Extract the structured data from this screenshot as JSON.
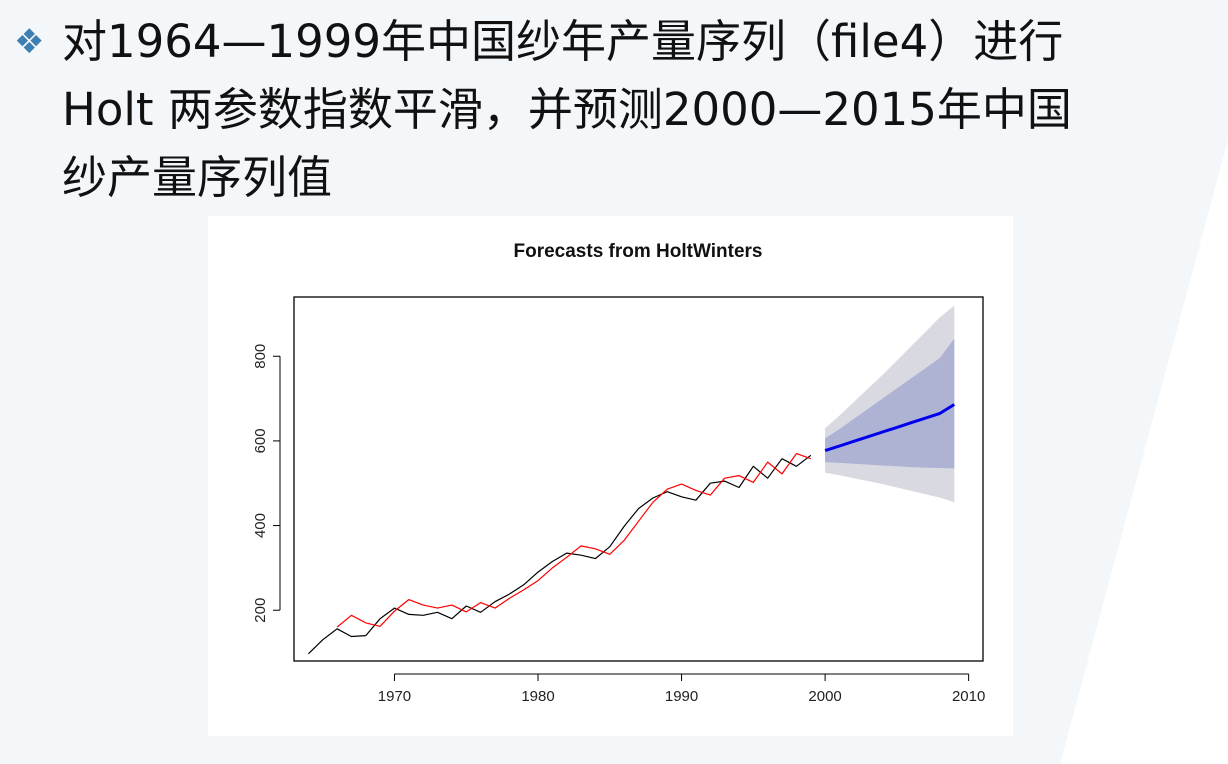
{
  "slide": {
    "bullet_icon": "diamond-cluster-icon",
    "line1": "对1964—1999年中国纱年产量序列（file4）进行",
    "line2": "Holt 两参数指数平滑，并预测2000—2015年中国",
    "line3": "纱产量序列值"
  },
  "chart_data": {
    "type": "line",
    "title": "Forecasts from HoltWinters",
    "xlabel": "",
    "ylabel": "",
    "xlim": [
      1963,
      2011
    ],
    "ylim": [
      80,
      940
    ],
    "x_ticks": [
      1970,
      1980,
      1990,
      2000,
      2010
    ],
    "y_ticks": [
      200,
      400,
      600,
      800
    ],
    "grid": false,
    "colors": {
      "observed": "#000000",
      "fitted": "#ff0000",
      "forecast": "#0000ee",
      "band95": "#d9d9e2",
      "band80": "#aeb3d4"
    },
    "observed": {
      "x": [
        1964,
        1965,
        1966,
        1967,
        1968,
        1969,
        1970,
        1971,
        1972,
        1973,
        1974,
        1975,
        1976,
        1977,
        1978,
        1979,
        1980,
        1981,
        1982,
        1983,
        1984,
        1985,
        1986,
        1987,
        1988,
        1989,
        1990,
        1991,
        1992,
        1993,
        1994,
        1995,
        1996,
        1997,
        1998,
        1999
      ],
      "y": [
        97,
        130,
        156,
        138,
        140,
        180,
        205,
        190,
        188,
        195,
        180,
        210,
        195,
        220,
        238,
        260,
        290,
        315,
        335,
        330,
        322,
        350,
        398,
        440,
        465,
        480,
        468,
        460,
        500,
        505,
        490,
        540,
        512,
        558,
        540,
        566
      ]
    },
    "fitted": {
      "x": [
        1966,
        1967,
        1968,
        1969,
        1970,
        1971,
        1972,
        1973,
        1974,
        1975,
        1976,
        1977,
        1978,
        1979,
        1980,
        1981,
        1982,
        1983,
        1984,
        1985,
        1986,
        1987,
        1988,
        1989,
        1990,
        1991,
        1992,
        1993,
        1994,
        1995,
        1996,
        1997,
        1998,
        1999
      ],
      "y": [
        160,
        188,
        170,
        162,
        198,
        225,
        212,
        205,
        212,
        196,
        218,
        205,
        228,
        248,
        270,
        300,
        325,
        352,
        345,
        332,
        365,
        410,
        455,
        486,
        498,
        483,
        472,
        512,
        518,
        502,
        550,
        522,
        570,
        558
      ]
    },
    "forecast": {
      "x": [
        2000,
        2001,
        2002,
        2003,
        2004,
        2005,
        2006,
        2007,
        2008,
        2009
      ],
      "mean": [
        577,
        588,
        599,
        610,
        621,
        632,
        643,
        654,
        665,
        686
      ],
      "lo80": [
        550,
        548,
        546,
        544,
        542,
        540,
        538,
        537,
        536,
        535
      ],
      "hi80": [
        606,
        628,
        652,
        676,
        700,
        724,
        748,
        772,
        796,
        842
      ],
      "lo95": [
        525,
        519,
        512,
        505,
        498,
        490,
        482,
        474,
        466,
        455
      ],
      "hi95": [
        630,
        660,
        692,
        724,
        756,
        790,
        824,
        858,
        892,
        920
      ]
    }
  }
}
